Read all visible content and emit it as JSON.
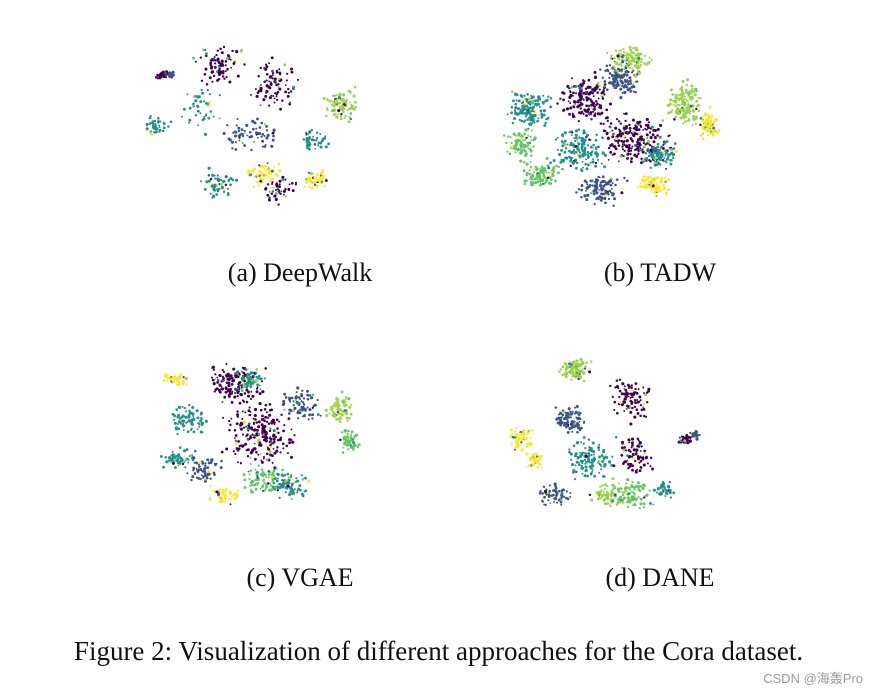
{
  "figure": {
    "caption": "Figure 2: Visualization of different approaches for the Cora dataset.",
    "panels": [
      {
        "label": "(a) DeepWalk"
      },
      {
        "label": "(b) TADW"
      },
      {
        "label": "(c) VGAE"
      },
      {
        "label": "(d) DANE"
      }
    ]
  },
  "palette": [
    "#440154",
    "#3b528b",
    "#21918c",
    "#5ec962",
    "#fde725",
    "#9bd44a",
    "#2c6f8e"
  ],
  "watermark": "CSDN @海轰Pro"
}
